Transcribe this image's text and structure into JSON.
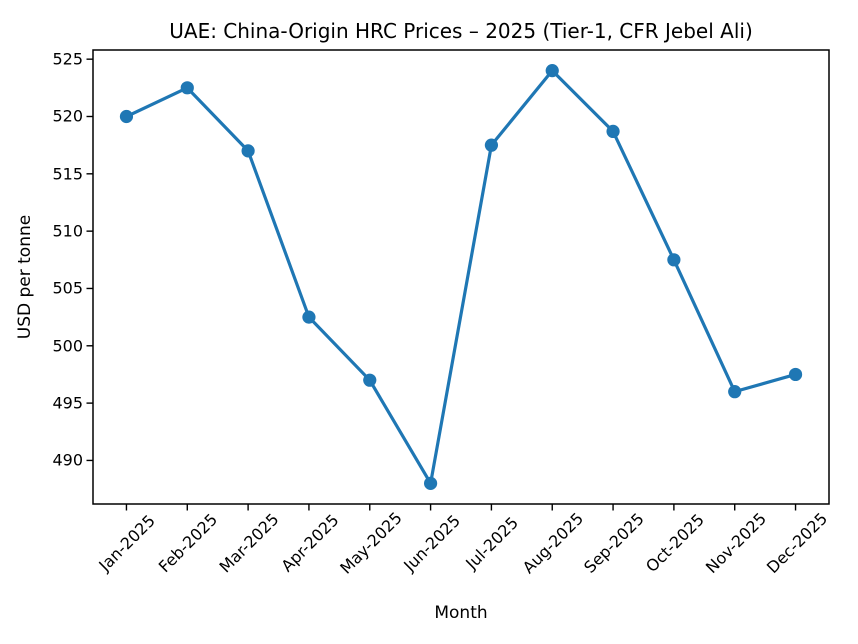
{
  "chart_data": {
    "type": "line",
    "title": "UAE: China-Origin HRC Prices – 2025 (Tier-1, CFR Jebel Ali)",
    "xlabel": "Month",
    "ylabel": "USD per tonne",
    "categories": [
      "Jan-2025",
      "Feb-2025",
      "Mar-2025",
      "Apr-2025",
      "May-2025",
      "Jun-2025",
      "Jul-2025",
      "Aug-2025",
      "Sep-2025",
      "Oct-2025",
      "Nov-2025",
      "Dec-2025"
    ],
    "values": [
      520,
      522.5,
      517,
      502.5,
      497,
      488,
      517.5,
      524,
      518.7,
      507.5,
      496,
      497.5
    ],
    "yticks": [
      490,
      495,
      500,
      505,
      510,
      515,
      520,
      525
    ],
    "ylim": [
      486.2,
      525.8
    ],
    "x_margin": 0.55,
    "grid": false,
    "legend": null,
    "line_color": "#1f77b4",
    "marker": "circle",
    "axis_color": "#000000",
    "text_color": "#000000",
    "background_color": "#ffffff"
  }
}
